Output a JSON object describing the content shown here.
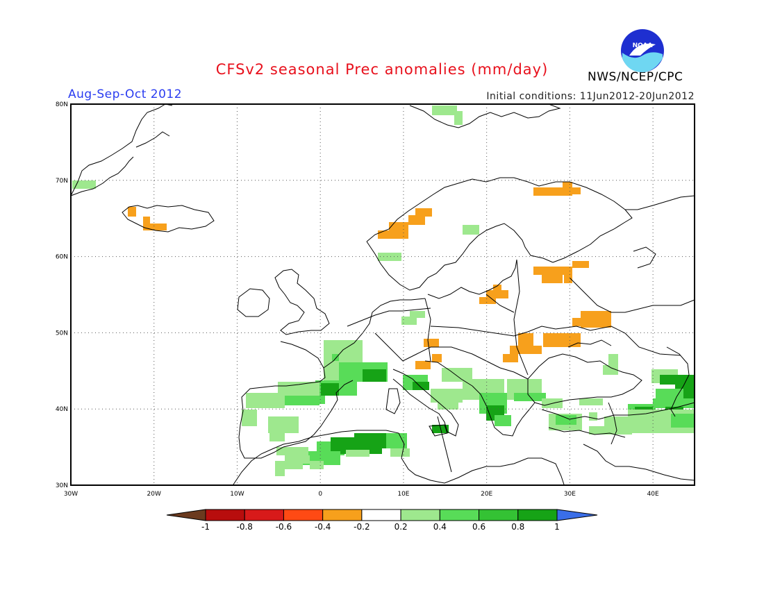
{
  "header": {
    "title": "CFSv2 seasonal Prec anomalies (mm/day)",
    "season": "Aug-Sep-Oct 2012",
    "initial_conditions": "Initial conditions: 11Jun2012-20Jun2012",
    "agency": "NWS/NCEP/CPC",
    "logo_text": "NOAA"
  },
  "axes": {
    "x_ticks": [
      "30W",
      "20W",
      "10W",
      "0",
      "10E",
      "20E",
      "30E",
      "40E"
    ],
    "y_ticks": [
      "80N",
      "70N",
      "60N",
      "50N",
      "40N",
      "30N"
    ]
  },
  "colorbar": {
    "tick_labels": [
      "-1",
      "-0.8",
      "-0.6",
      "-0.4",
      "-0.2",
      "0.2",
      "0.4",
      "0.6",
      "0.8",
      "1"
    ],
    "colors": [
      "#6b3a1f",
      "#b80d0d",
      "#d81a1a",
      "#ff4a14",
      "#f7a01c",
      "#ffffff",
      "#9ee88e",
      "#58dc58",
      "#34c234",
      "#16a316",
      "#3a6ee8"
    ]
  },
  "map": {
    "lon_range": [
      -30,
      45
    ],
    "lat_range": [
      30,
      80
    ],
    "grid_style": "dotted",
    "colors": {
      "light_green": "#9ee88e",
      "mid_green": "#58dc58",
      "dark_green": "#16a316",
      "orange": "#f7a01c"
    }
  }
}
